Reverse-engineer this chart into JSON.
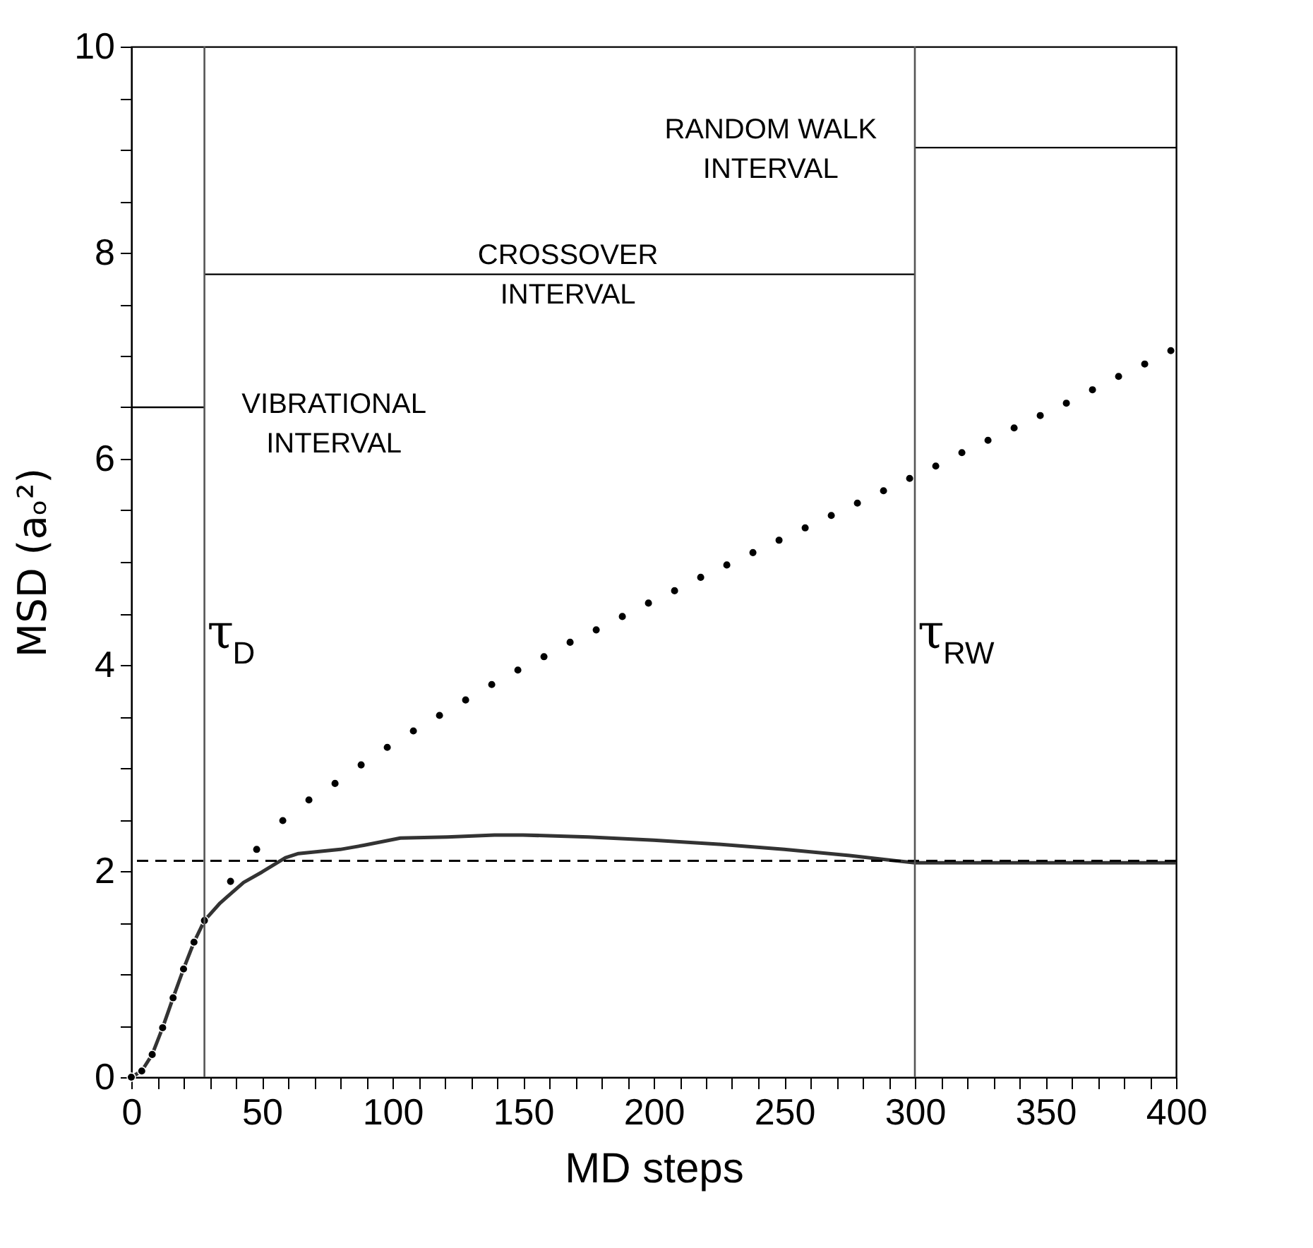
{
  "chart_data": {
    "type": "line",
    "xlabel": "MD steps",
    "ylabel": "MSD (aₒ²)",
    "xlim": [
      0,
      400
    ],
    "ylim": [
      0,
      10
    ],
    "xticks": [
      0,
      {
        "value": 10,
        "label": null
      },
      {
        "value": 20,
        "label": null
      },
      {
        "value": 30,
        "label": null
      },
      {
        "value": 40,
        "label": null
      },
      50,
      {
        "value": 60,
        "label": null
      },
      {
        "value": 70,
        "label": null
      },
      {
        "value": 80,
        "label": null
      },
      {
        "value": 90,
        "label": null
      },
      100,
      {
        "value": 110,
        "label": null
      },
      {
        "value": 120,
        "label": null
      },
      {
        "value": 130,
        "label": null
      },
      {
        "value": 140,
        "label": null
      },
      150,
      {
        "value": 160,
        "label": null
      },
      {
        "value": 170,
        "label": null
      },
      {
        "value": 180,
        "label": null
      },
      {
        "value": 190,
        "label": null
      },
      200,
      {
        "value": 210,
        "label": null
      },
      {
        "value": 220,
        "label": null
      },
      {
        "value": 230,
        "label": null
      },
      {
        "value": 240,
        "label": null
      },
      250,
      {
        "value": 260,
        "label": null
      },
      {
        "value": 270,
        "label": null
      },
      {
        "value": 280,
        "label": null
      },
      {
        "value": 290,
        "label": null
      },
      300,
      {
        "value": 310,
        "label": null
      },
      {
        "value": 320,
        "label": null
      },
      {
        "value": 330,
        "label": null
      },
      {
        "value": 340,
        "label": null
      },
      350,
      {
        "value": 360,
        "label": null
      },
      {
        "value": 370,
        "label": null
      },
      {
        "value": 380,
        "label": null
      },
      {
        "value": 390,
        "label": null
      },
      400
    ],
    "yticks": [
      0,
      {
        "value": 0.5,
        "label": null
      },
      {
        "value": 1,
        "label": null
      },
      {
        "value": 1.5,
        "label": null
      },
      2,
      {
        "value": 2.5,
        "label": null
      },
      {
        "value": 3,
        "label": null
      },
      {
        "value": 3.5,
        "label": null
      },
      4,
      {
        "value": 4.5,
        "label": null
      },
      {
        "value": 5,
        "label": null
      },
      {
        "value": 5.5,
        "label": null
      },
      6,
      {
        "value": 6.5,
        "label": null
      },
      {
        "value": 7,
        "label": null
      },
      {
        "value": 7.5,
        "label": null
      },
      8,
      {
        "value": 8.5,
        "label": null
      },
      {
        "value": 9,
        "label": null
      },
      {
        "value": 9.5,
        "label": null
      },
      10
    ],
    "grid": false,
    "series": [
      {
        "type": "scatter",
        "marker": "circle",
        "color": "#000000",
        "x": [
          0,
          4,
          8,
          12,
          16,
          20,
          24,
          28,
          38,
          48,
          58,
          68,
          78,
          88,
          98,
          108,
          118,
          128,
          138,
          148,
          158,
          168,
          178,
          188,
          198,
          208,
          218,
          228,
          238,
          248,
          258,
          268,
          278,
          288,
          298,
          308,
          318,
          328,
          338,
          348,
          358,
          368,
          378,
          388,
          398
        ],
        "values": [
          0,
          0.06,
          0.22,
          0.48,
          0.77,
          1.05,
          1.31,
          1.52,
          1.9,
          2.21,
          2.49,
          2.69,
          2.85,
          3.03,
          3.2,
          3.36,
          3.51,
          3.66,
          3.81,
          3.95,
          4.08,
          4.22,
          4.34,
          4.47,
          4.6,
          4.72,
          4.85,
          4.97,
          5.09,
          5.21,
          5.33,
          5.45,
          5.57,
          5.69,
          5.81,
          5.93,
          6.06,
          6.18,
          6.3,
          6.42,
          6.54,
          6.67,
          6.8,
          6.92,
          7.05
        ]
      },
      {
        "type": "line",
        "line_style": "solid",
        "color": "#333333",
        "x": [
          0,
          4,
          8,
          12,
          16,
          20,
          24,
          28,
          34,
          43,
          50,
          59,
          64,
          80,
          89,
          103,
          121,
          139,
          150,
          175,
          200,
          225,
          250,
          275,
          300,
          350,
          400
        ],
        "values": [
          0,
          0.06,
          0.22,
          0.48,
          0.77,
          1.05,
          1.31,
          1.52,
          1.69,
          1.89,
          1.99,
          2.13,
          2.17,
          2.21,
          2.25,
          2.32,
          2.33,
          2.35,
          2.35,
          2.33,
          2.3,
          2.26,
          2.21,
          2.15,
          2.08,
          2.08,
          2.08
        ]
      },
      {
        "type": "line",
        "line_style": "solid",
        "color": "#000000",
        "x": [
          0,
          28
        ],
        "values": [
          6.5,
          6.5
        ]
      },
      {
        "type": "line",
        "line_style": "solid",
        "color": "#000000",
        "x": [
          28,
          300
        ],
        "values": [
          7.79,
          7.79
        ]
      },
      {
        "type": "line",
        "line_style": "solid",
        "color": "#000000",
        "x": [
          300,
          400
        ],
        "values": [
          9.02,
          9.02
        ]
      }
    ],
    "ref_lines": [
      {
        "axis": "y",
        "value": 2.1,
        "line_style": "dashed",
        "color": "#000000"
      },
      {
        "axis": "x",
        "value": 28,
        "label": "τ$_{D}$",
        "color": "#555555",
        "line_style": "solid"
      },
      {
        "axis": "x",
        "value": 300,
        "label": "τ$_{RW}$",
        "color": "#555555",
        "line_style": "solid"
      }
    ],
    "annotations": [
      "VIBRATIONAL\nINTERVAL",
      "CROSSOVER\nINTERVAL",
      "RANDOM  WALK\nINTERVAL"
    ]
  }
}
